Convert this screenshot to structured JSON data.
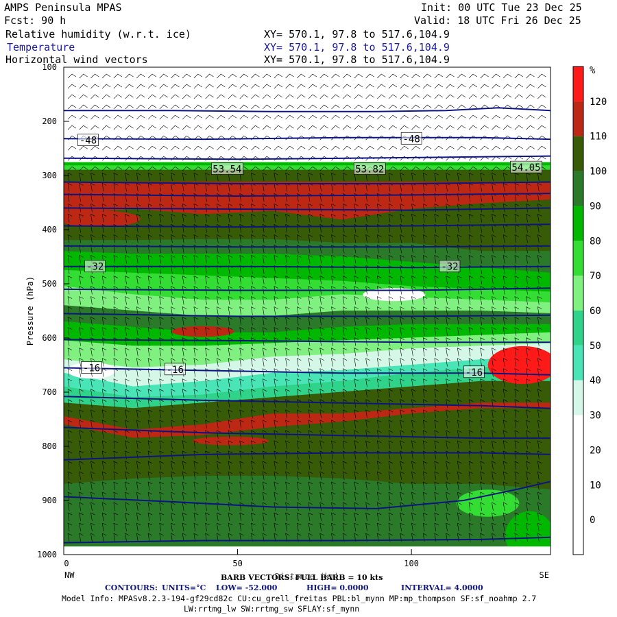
{
  "header": {
    "model": "AMPS Peninsula MPAS",
    "fcst": "Fcst:   90 h",
    "init": "Init: 00 UTC Tue 23 Dec 25",
    "valid": "Valid: 18 UTC Fri 26 Dec 25",
    "fields": [
      {
        "label": "Relative humidity (w.r.t. ice)",
        "xy": "XY= 570.1, 97.8 to 517.6,104.9"
      },
      {
        "label": "Temperature",
        "xy": "XY= 570.1, 97.8 to 517.6,104.9"
      },
      {
        "label": "Horizontal wind vectors",
        "xy": "XY= 570.1, 97.8 to 517.6,104.9"
      }
    ]
  },
  "colors": {
    "temp_contour": "#0c1480",
    "frame": "#000000"
  },
  "chart_data": {
    "type": "heatmap",
    "title": "Relative humidity (w.r.t. ice), Temperature, Horizontal wind vectors",
    "xlabel": "Distance (km)",
    "ylabel": "Pressure (hPa)",
    "xlim": [
      0,
      140
    ],
    "ylim": [
      1000,
      100
    ],
    "xticks": [
      0,
      50,
      100
    ],
    "yticks": [
      100,
      200,
      300,
      400,
      500,
      600,
      700,
      800,
      900,
      1000
    ],
    "x_end_labels": {
      "left": "NW",
      "right": "SE"
    },
    "colorbar": {
      "units": "%",
      "levels": [
        0,
        10,
        20,
        30,
        40,
        50,
        60,
        70,
        80,
        90,
        100,
        110,
        120
      ],
      "colors": [
        "#ffffff",
        "#ffffff",
        "#ffffff",
        "#ffffff",
        "#d4f7e8",
        "#49e5b6",
        "#2fd38a",
        "#80f080",
        "#33dd33",
        "#00b800",
        "#2a7a2a",
        "#385b08",
        "#bd2814",
        "#ff1a1a"
      ]
    },
    "rh_bands": [
      {
        "top": [
          276,
          276,
          276,
          276,
          276,
          276,
          276,
          276
        ],
        "bottom": [
          282,
          282,
          282,
          282,
          282,
          282,
          282,
          282
        ],
        "color": "#00b800"
      },
      {
        "top": [
          282,
          282,
          282,
          282,
          282,
          282,
          282,
          282
        ],
        "bottom": [
          290,
          290,
          290,
          290,
          290,
          290,
          290,
          290
        ],
        "color": "#33dd33"
      },
      {
        "top": [
          290,
          290,
          290,
          290,
          290,
          290,
          290,
          290
        ],
        "bottom": [
          312,
          312,
          312,
          312,
          312,
          312,
          312,
          312
        ],
        "color": "#385b08"
      },
      {
        "top": [
          312,
          312,
          312,
          312,
          312,
          312,
          312,
          312
        ],
        "bottom": [
          372,
          362,
          372,
          366,
          382,
          362,
          352,
          345
        ],
        "color": "#bd2814"
      },
      {
        "top": [
          372,
          362,
          372,
          366,
          382,
          362,
          352,
          345
        ],
        "bottom": [
          420,
          420,
          418,
          418,
          425,
          425,
          440,
          440
        ],
        "color": "#385b08"
      },
      {
        "top": [
          420,
          420,
          418,
          418,
          425,
          425,
          440,
          440
        ],
        "bottom": [
          440,
          445,
          445,
          445,
          450,
          460,
          470,
          480
        ],
        "color": "#2a7a2a"
      },
      {
        "top": [
          440,
          445,
          445,
          445,
          450,
          460,
          470,
          480
        ],
        "bottom": [
          475,
          480,
          485,
          490,
          495,
          505,
          510,
          515
        ],
        "color": "#00b800"
      },
      {
        "top": [
          475,
          480,
          485,
          490,
          495,
          505,
          510,
          515
        ],
        "bottom": [
          505,
          520,
          530,
          530,
          520,
          525,
          530,
          535
        ],
        "color": "#33dd33"
      },
      {
        "top": [
          505,
          520,
          530,
          530,
          520,
          525,
          530,
          535
        ],
        "bottom": [
          540,
          550,
          560,
          560,
          550,
          550,
          550,
          555
        ],
        "color": "#80f080"
      },
      {
        "top": [
          540,
          550,
          560,
          560,
          550,
          550,
          550,
          555
        ],
        "bottom": [
          570,
          580,
          590,
          590,
          580,
          575,
          575,
          575
        ],
        "color": "#2a7a2a"
      },
      {
        "top": [
          570,
          580,
          590,
          590,
          580,
          575,
          575,
          575
        ],
        "bottom": [
          605,
          615,
          615,
          610,
          605,
          600,
          595,
          590
        ],
        "color": "#00b800"
      },
      {
        "top": [
          605,
          615,
          615,
          610,
          605,
          600,
          595,
          590
        ],
        "bottom": [
          640,
          655,
          650,
          635,
          630,
          620,
          615,
          610
        ],
        "color": "#80f080"
      },
      {
        "top": [
          640,
          655,
          650,
          635,
          630,
          620,
          615,
          610
        ],
        "bottom": [
          665,
          690,
          680,
          665,
          660,
          650,
          640,
          635
        ],
        "color": "#d4f7e8"
      },
      {
        "top": [
          665,
          690,
          680,
          665,
          660,
          650,
          640,
          635
        ],
        "bottom": [
          690,
          710,
          705,
          690,
          680,
          665,
          655,
          645
        ],
        "color": "#49e5b6"
      },
      {
        "top": [
          690,
          710,
          705,
          690,
          680,
          665,
          655,
          645
        ],
        "bottom": [
          720,
          730,
          720,
          710,
          700,
          690,
          680,
          680
        ],
        "color": "#2fd38a"
      },
      {
        "top": [
          720,
          730,
          720,
          710,
          700,
          690,
          680,
          680
        ],
        "bottom": [
          745,
          770,
          760,
          740,
          740,
          730,
          720,
          720
        ],
        "color": "#385b08"
      },
      {
        "top": [
          745,
          770,
          760,
          740,
          740,
          730,
          720,
          720
        ],
        "bottom": [
          760,
          785,
          780,
          765,
          755,
          740,
          730,
          730
        ],
        "color": "#bd2814"
      },
      {
        "top": [
          760,
          785,
          780,
          765,
          755,
          740,
          730,
          730
        ],
        "bottom": [
          870,
          860,
          855,
          855,
          860,
          870,
          870,
          880
        ],
        "color": "#385b08"
      },
      {
        "top": [
          870,
          860,
          855,
          855,
          860,
          870,
          870,
          880
        ],
        "bottom": [
          985,
          985,
          985,
          985,
          985,
          985,
          985,
          985
        ],
        "color": "#2a7a2a"
      }
    ],
    "rh_patches": [
      {
        "center_x": 40,
        "center_p": 588,
        "half_width_km": 9,
        "half_height_hpa": 10,
        "color": "#bd2814"
      },
      {
        "center_x": 48,
        "center_p": 790,
        "half_width_km": 11,
        "half_height_hpa": 8,
        "color": "#bd2814"
      },
      {
        "center_x": 10,
        "center_p": 380,
        "half_width_km": 12,
        "half_height_hpa": 15,
        "color": "#bd2814"
      },
      {
        "center_x": 132,
        "center_p": 650,
        "half_width_km": 10,
        "half_height_hpa": 35,
        "color": "#ff1a1a"
      },
      {
        "center_x": 8,
        "center_p": 660,
        "half_width_km": 7,
        "half_height_hpa": 15,
        "color": "#ffffff"
      },
      {
        "center_x": 95,
        "center_p": 520,
        "half_width_km": 9,
        "half_height_hpa": 12,
        "color": "#ffffff"
      },
      {
        "center_x": 134,
        "center_p": 965,
        "half_width_km": 7,
        "half_height_hpa": 45,
        "color": "#00b800"
      },
      {
        "center_x": 122,
        "center_p": 905,
        "half_width_km": 9,
        "half_height_hpa": 25,
        "color": "#33dd33"
      }
    ],
    "temperature_contours": [
      {
        "x": [
          0,
          30,
          60,
          90,
          110,
          125,
          140
        ],
        "p": [
          180,
          180,
          182,
          182,
          180,
          175,
          180
        ]
      },
      {
        "x": [
          0,
          40,
          80,
          120,
          140
        ],
        "p": [
          232,
          233,
          230,
          230,
          233
        ]
      },
      {
        "x": [
          0,
          50,
          100,
          140
        ],
        "p": [
          268,
          270,
          267,
          264
        ]
      },
      {
        "x": [
          0,
          50,
          100,
          140
        ],
        "p": [
          312,
          315,
          315,
          312
        ]
      },
      {
        "x": [
          0,
          50,
          100,
          140
        ],
        "p": [
          335,
          338,
          336,
          333
        ]
      },
      {
        "x": [
          0,
          50,
          100,
          140
        ],
        "p": [
          360,
          362,
          364,
          360
        ]
      },
      {
        "x": [
          0,
          50,
          100,
          140
        ],
        "p": [
          393,
          395,
          393,
          390
        ]
      },
      {
        "x": [
          0,
          50,
          100,
          140
        ],
        "p": [
          430,
          432,
          432,
          430
        ]
      },
      {
        "x": [
          0,
          50,
          100,
          140
        ],
        "p": [
          468,
          468,
          470,
          468
        ]
      },
      {
        "x": [
          0,
          50,
          100,
          140
        ],
        "p": [
          510,
          512,
          512,
          508
        ]
      },
      {
        "x": [
          0,
          50,
          100,
          140
        ],
        "p": [
          555,
          560,
          560,
          558
        ]
      },
      {
        "x": [
          0,
          50,
          100,
          140
        ],
        "p": [
          603,
          605,
          608,
          608
        ]
      },
      {
        "x": [
          0,
          40,
          80,
          120,
          140
        ],
        "p": [
          655,
          660,
          665,
          665,
          668
        ]
      },
      {
        "x": [
          0,
          40,
          80,
          120,
          140
        ],
        "p": [
          708,
          715,
          720,
          725,
          730
        ]
      },
      {
        "x": [
          0,
          40,
          80,
          120,
          140
        ],
        "p": [
          765,
          775,
          780,
          785,
          785
        ]
      },
      {
        "x": [
          0,
          40,
          80,
          120,
          140
        ],
        "p": [
          825,
          815,
          812,
          812,
          815
        ]
      },
      {
        "x": [
          0,
          30,
          60,
          90,
          115,
          130,
          140
        ],
        "p": [
          893,
          902,
          912,
          915,
          900,
          880,
          865
        ]
      },
      {
        "x": [
          0,
          40,
          80,
          120,
          140
        ],
        "p": [
          978,
          974,
          974,
          972,
          968
        ]
      }
    ],
    "contour_labels": [
      {
        "x": 7,
        "p": 235,
        "text": "-48"
      },
      {
        "x": 100,
        "p": 232,
        "text": "-48"
      },
      {
        "x": 9,
        "p": 468,
        "text": "-32"
      },
      {
        "x": 111,
        "p": 468,
        "text": "-32"
      },
      {
        "x": 8,
        "p": 655,
        "text": "-16"
      },
      {
        "x": 32,
        "p": 658,
        "text": "-16"
      },
      {
        "x": 118,
        "p": 663,
        "text": "-16"
      },
      {
        "x": 47,
        "p": 288,
        "text": "53.54"
      },
      {
        "x": 88,
        "p": 288,
        "text": "53.82"
      },
      {
        "x": 133,
        "p": 285,
        "text": "54.05"
      }
    ],
    "footer": {
      "barb_note": "BARB VECTORS: FULL BARB = 10 kts",
      "contours_label": "CONTOURS:",
      "units": "UNITS=°C",
      "low": "LOW= -52.000",
      "high": "HIGH= 0.0000",
      "interval": "INTERVAL= 4.0000"
    }
  },
  "model_info": {
    "line1": "Model Info: MPASv8.2.3-194-gf29cd82c CU:cu_grell_freitas PBL:bl_mynn MP:mp_thompson SF:sf_noahmp 2.7",
    "line2": "LW:rrtmg_lw SW:rrtmg_sw SFLAY:sf_mynn"
  }
}
